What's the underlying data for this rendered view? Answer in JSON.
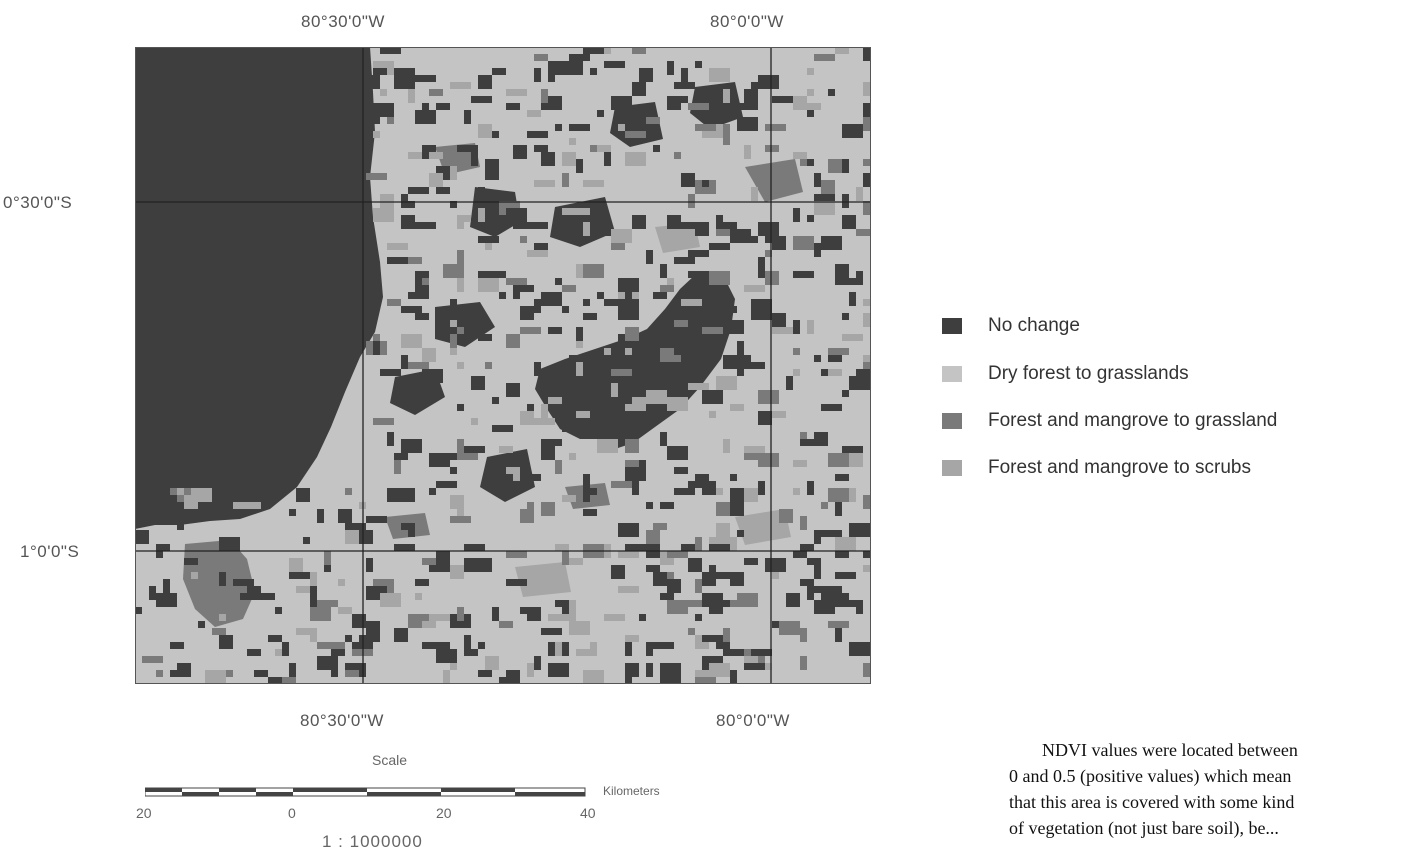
{
  "map": {
    "top_labels": [
      "80°30'0\"W",
      "80°0'0\"W"
    ],
    "bottom_labels": [
      "80°30'0\"W",
      "80°0'0\"W"
    ],
    "left_labels": [
      "0°30'0\"S",
      "1°0'0\"S"
    ],
    "colors": {
      "no_change": "#3e3e3e",
      "dry_forest_to_grasslands": "#c4c4c4",
      "forest_mangrove_to_grassland": "#7a7a7a",
      "forest_mangrove_to_scrubs": "#a6a6a6"
    }
  },
  "legend": {
    "items": [
      {
        "label": "No change",
        "color": "#3e3e3e"
      },
      {
        "label": "Dry forest to grasslands",
        "color": "#c4c4c4"
      },
      {
        "label": "Forest and mangrove to grassland",
        "color": "#7a7a7a"
      },
      {
        "label": "Forest and mangrove to scrubs",
        "color": "#a6a6a6"
      }
    ]
  },
  "scale": {
    "title": "Scale",
    "ticks": [
      "20",
      "0",
      "20",
      "40"
    ],
    "unit": "Kilometers",
    "ratio": "1 : 1000000"
  },
  "body_text": {
    "line1": "NDVI values were located between",
    "line2": "0 and 0.5 (positive values) which mean",
    "line3": "that this area is covered with some kind",
    "line4": "of vegetation (not just bare soil), be..."
  }
}
